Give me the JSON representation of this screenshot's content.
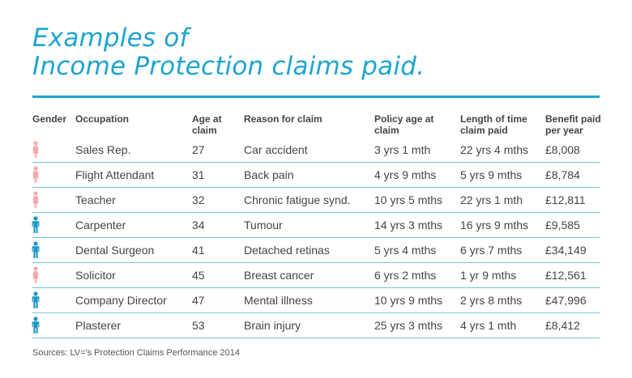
{
  "title": {
    "line1": "Examples of",
    "line2": "Income Protection claims paid."
  },
  "colors": {
    "accent": "#1ea5cf",
    "female": "#f4a7a7",
    "male": "#1a97c6"
  },
  "headers": {
    "gender": "Gender",
    "occupation": "Occupation",
    "age": "Age at claim",
    "reason": "Reason for claim",
    "policy_age": "Policy age at claim",
    "length": "Length of time claim paid",
    "benefit": "Benefit paid per year"
  },
  "rows": [
    {
      "gender": "female",
      "occupation": "Sales Rep.",
      "age": "27",
      "reason": "Car accident",
      "policy_age": "3 yrs 1 mth",
      "length": "22 yrs 4 mths",
      "benefit": "£8,008"
    },
    {
      "gender": "female",
      "occupation": "Flight Attendant",
      "age": "31",
      "reason": "Back pain",
      "policy_age": "4 yrs 9 mths",
      "length": "5 yrs 9 mths",
      "benefit": "£8,784"
    },
    {
      "gender": "female",
      "occupation": "Teacher",
      "age": "32",
      "reason": "Chronic fatigue synd.",
      "policy_age": "10 yrs 5 mths",
      "length": "22 yrs 1 mth",
      "benefit": "£12,811"
    },
    {
      "gender": "male",
      "occupation": "Carpenter",
      "age": "34",
      "reason": "Tumour",
      "policy_age": "14 yrs 3 mths",
      "length": "16 yrs 9 mths",
      "benefit": "£9,585"
    },
    {
      "gender": "male",
      "occupation": "Dental Surgeon",
      "age": "41",
      "reason": "Detached retinas",
      "policy_age": "5 yrs 4 mths",
      "length": "6 yrs 7 mths",
      "benefit": "£34,149"
    },
    {
      "gender": "female",
      "occupation": "Solicitor",
      "age": "45",
      "reason": "Breast cancer",
      "policy_age": "6 yrs 2 mths",
      "length": "1 yr 9 mths",
      "benefit": "£12,561"
    },
    {
      "gender": "male",
      "occupation": "Company Director",
      "age": "47",
      "reason": "Mental illness",
      "policy_age": "10 yrs 9 mths",
      "length": "2 yrs 8 mths",
      "benefit": "£47,996"
    },
    {
      "gender": "male",
      "occupation": "Plasterer",
      "age": "53",
      "reason": "Brain injury",
      "policy_age": "25 yrs 3 mths",
      "length": "4 yrs 1 mth",
      "benefit": "£8,412"
    }
  ],
  "source": "Sources: LV='s Protection Claims Performance 2014"
}
